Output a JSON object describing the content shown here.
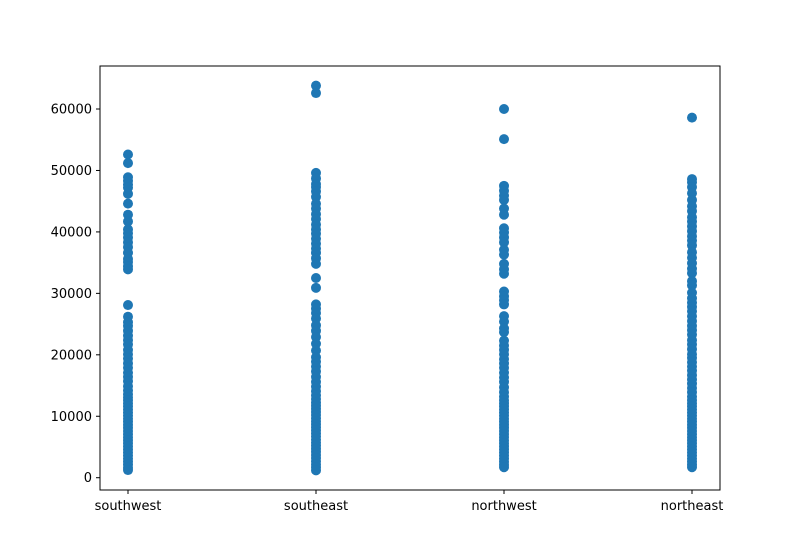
{
  "chart_data": {
    "type": "scatter",
    "categories": [
      "southwest",
      "southeast",
      "northwest",
      "northeast"
    ],
    "y_ticks": [
      0,
      10000,
      20000,
      30000,
      40000,
      50000,
      60000
    ],
    "y_tick_labels": [
      "0",
      "10000",
      "20000",
      "30000",
      "40000",
      "50000",
      "60000"
    ],
    "ylim": [
      -2000,
      67000
    ],
    "marker_color": "#1f77b4",
    "grid": false,
    "legend": "none",
    "series": [
      {
        "category": "southwest",
        "values": [
          52600,
          51200,
          48900,
          48300,
          47700,
          47200,
          46200,
          44600,
          42800,
          41700,
          40400,
          39800,
          39100,
          38300,
          37500,
          36600,
          35600,
          35100,
          34400,
          33900,
          28100,
          26200,
          25300,
          24700,
          23900,
          23100,
          22400,
          21700,
          20800,
          20100,
          19400,
          18600,
          17900,
          17100,
          16400,
          15700,
          14900,
          14200,
          13600,
          13100,
          12600,
          12100,
          11600,
          11100,
          10600,
          10100,
          9600,
          9100,
          8600,
          8100,
          7600,
          7100,
          6600,
          6100,
          5600,
          5100,
          4600,
          4100,
          3600,
          3100,
          2600,
          2100,
          1600,
          1250
        ]
      },
      {
        "category": "southeast",
        "values": [
          63800,
          62600,
          49600,
          48700,
          47800,
          47300,
          46600,
          45700,
          44600,
          43800,
          42900,
          42100,
          41200,
          40400,
          39700,
          38900,
          38100,
          37300,
          36600,
          35700,
          34800,
          32500,
          30900,
          28200,
          27500,
          26800,
          25900,
          24800,
          23900,
          22900,
          21800,
          20700,
          19600,
          18900,
          18100,
          17300,
          16400,
          15600,
          14800,
          14100,
          13400,
          12800,
          12200,
          11700,
          11200,
          10700,
          10200,
          9700,
          9200,
          8700,
          8200,
          7700,
          7200,
          6700,
          6200,
          5700,
          5200,
          4700,
          4200,
          3700,
          3200,
          2700,
          2200,
          1700,
          1200
        ]
      },
      {
        "category": "northwest",
        "values": [
          60000,
          55100,
          47500,
          46700,
          45900,
          45200,
          43800,
          42800,
          40600,
          39900,
          39100,
          38300,
          37100,
          36300,
          34800,
          33900,
          33200,
          30300,
          29500,
          28900,
          28200,
          26300,
          25400,
          24300,
          23700,
          22300,
          21500,
          20800,
          20100,
          19300,
          18600,
          17900,
          17100,
          16300,
          15600,
          14700,
          13900,
          13200,
          12600,
          12100,
          11600,
          11100,
          10600,
          10100,
          9600,
          9100,
          8600,
          8100,
          7600,
          7100,
          6600,
          6100,
          5600,
          5100,
          4600,
          4100,
          3600,
          3100,
          2600,
          2100,
          1700
        ]
      },
      {
        "category": "northeast",
        "values": [
          58600,
          48600,
          48100,
          47300,
          46300,
          45200,
          44200,
          43400,
          42400,
          41700,
          40900,
          40100,
          39300,
          38600,
          37800,
          36700,
          35800,
          34900,
          34000,
          33300,
          32000,
          31300,
          30100,
          29200,
          28500,
          27800,
          27100,
          26300,
          25500,
          24700,
          24000,
          23300,
          22400,
          21700,
          20900,
          20100,
          19500,
          18800,
          18100,
          17400,
          16700,
          16000,
          15300,
          14600,
          13900,
          13200,
          12600,
          12100,
          11600,
          11100,
          10600,
          10100,
          9600,
          9100,
          8600,
          8100,
          7600,
          7100,
          6600,
          6100,
          5600,
          5100,
          4600,
          4100,
          3600,
          3100,
          2600,
          2100,
          1700
        ]
      }
    ]
  }
}
